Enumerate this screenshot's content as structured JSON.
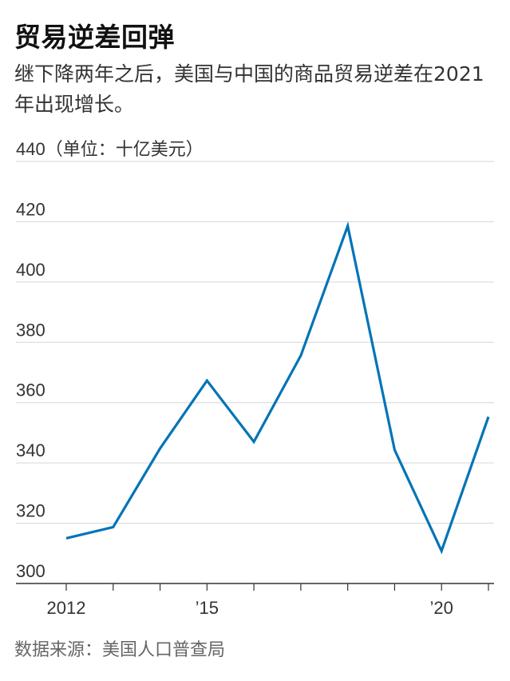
{
  "title": "贸易逆差回弹",
  "subtitle": "继下降两年之后，美国与中国的商品贸易逆差在2021年出现增长。",
  "source": "数据来源：美国人口普查局",
  "chart_data": {
    "type": "line",
    "unit_label": "（单位：十亿美元）",
    "x": [
      2012,
      2013,
      2014,
      2015,
      2016,
      2017,
      2018,
      2019,
      2020,
      2021
    ],
    "series": [
      {
        "values": [
          315,
          318.7,
          344.8,
          367.3,
          347,
          375.6,
          418.6,
          344.3,
          310.8,
          355.3
        ]
      }
    ],
    "ylim": [
      300,
      440
    ],
    "yticks": [
      300,
      320,
      340,
      360,
      380,
      400,
      420,
      440
    ],
    "xtick_labels": [
      {
        "x": 2012,
        "label": "2012"
      },
      {
        "x": 2015,
        "label": "’15"
      },
      {
        "x": 2020,
        "label": "’20"
      }
    ],
    "colors": {
      "line": "#0274b6",
      "grid": "#d6d6d6",
      "axis": "#333333"
    },
    "grid": true
  }
}
